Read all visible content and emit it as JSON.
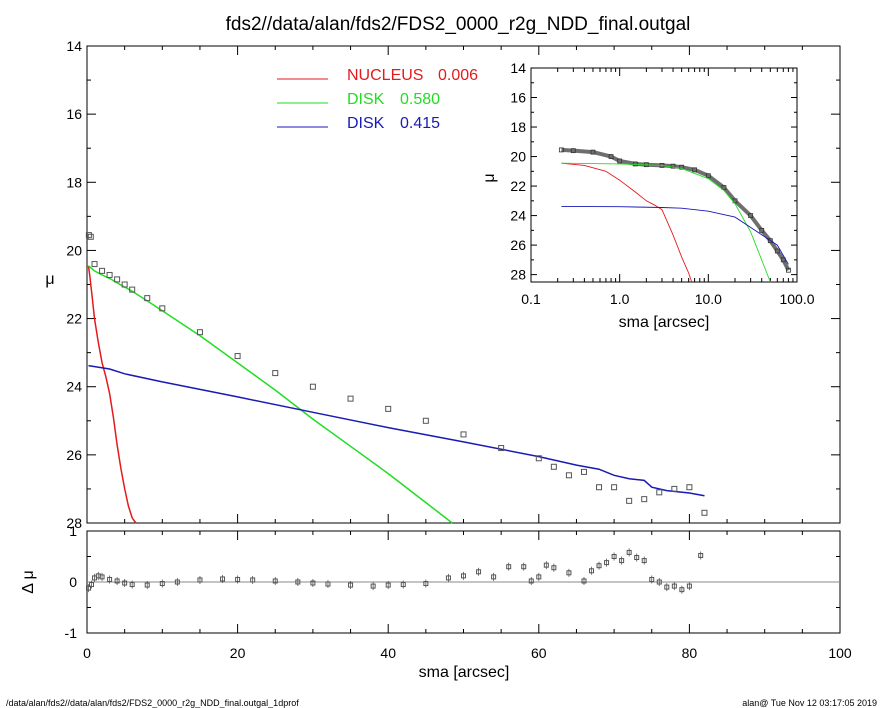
{
  "title": "fds2//data/alan/fds2/FDS2_0000_r2g_NDD_final.outgal",
  "footer_left": "/data/alan/fds2//data/alan/fds2/FDS2_0000_r2g_NDD_final.outgal_1dprof",
  "footer_right": "alan@  Tue Nov 12 03:17:05 2019",
  "colors": {
    "nucleus": "#e41a1c",
    "disk1": "#22dd22",
    "disk2": "#1a1ab4",
    "data": "#555555",
    "zero_line": "#888888"
  },
  "chart_data": [
    {
      "type": "line",
      "name": "main-profile",
      "xlabel": "sma [arcsec]",
      "ylabel": "μ",
      "xlim": [
        0,
        100
      ],
      "ylim": [
        28,
        14
      ],
      "x_ticks": [
        "0",
        "20",
        "40",
        "60",
        "80",
        "100"
      ],
      "y_ticks": [
        "14",
        "16",
        "18",
        "20",
        "22",
        "24",
        "26",
        "28"
      ],
      "legend": {
        "placement": "top-center",
        "entries": [
          {
            "label": "NUCLEUS",
            "value": "0.006",
            "color": "#e41a1c"
          },
          {
            "label": "DISK",
            "value": "0.580",
            "color": "#22dd22"
          },
          {
            "label": "DISK",
            "value": "0.415",
            "color": "#1a1ab4"
          }
        ]
      },
      "series": [
        {
          "key": "nucleus",
          "x": [
            0.2,
            0.4,
            0.7,
            1.0,
            1.5,
            2.0,
            2.5,
            3.0,
            3.5,
            4.0,
            4.5,
            5.0,
            5.5,
            6.0,
            6.5
          ],
          "y": [
            20.45,
            20.8,
            21.4,
            22.0,
            22.7,
            23.3,
            23.7,
            24.2,
            24.9,
            25.7,
            26.4,
            27.0,
            27.5,
            27.85,
            28.0
          ]
        },
        {
          "key": "disk1",
          "x": [
            0.2,
            1,
            2,
            3,
            4,
            6,
            8,
            10,
            15,
            20,
            25,
            30,
            35,
            40,
            45,
            48.5
          ],
          "y": [
            20.45,
            20.6,
            20.72,
            20.82,
            20.95,
            21.2,
            21.48,
            21.77,
            22.5,
            23.3,
            24.1,
            24.95,
            25.75,
            26.55,
            27.4,
            28.0
          ]
        },
        {
          "key": "disk2",
          "x": [
            0.2,
            3,
            5,
            10,
            20,
            30,
            40,
            50,
            60,
            65,
            68,
            70,
            72,
            74,
            75,
            77,
            80,
            82
          ],
          "y": [
            23.38,
            23.48,
            23.62,
            23.86,
            24.3,
            24.75,
            25.2,
            25.62,
            26.05,
            26.3,
            26.42,
            26.6,
            26.7,
            26.75,
            26.95,
            27.05,
            27.12,
            27.2
          ]
        },
        {
          "key": "data",
          "x": [
            0.25,
            0.5,
            1,
            2,
            3,
            4,
            5,
            6,
            8,
            10,
            15,
            20,
            25,
            30,
            35,
            40,
            45,
            50,
            55,
            60,
            62,
            64,
            66,
            68,
            70,
            72,
            74,
            76,
            78,
            80,
            82
          ],
          "y": [
            19.55,
            19.6,
            20.4,
            20.6,
            20.72,
            20.85,
            21.0,
            21.15,
            21.4,
            21.7,
            22.4,
            23.1,
            23.6,
            24.0,
            24.35,
            24.65,
            25.0,
            25.4,
            25.8,
            26.1,
            26.35,
            26.6,
            26.5,
            26.95,
            26.95,
            27.35,
            27.3,
            27.1,
            27.0,
            26.95,
            27.7
          ]
        }
      ]
    },
    {
      "type": "scatter",
      "name": "residuals",
      "xlabel": "sma [arcsec]",
      "ylabel": "Δ μ",
      "xlim": [
        0,
        100
      ],
      "ylim": [
        -1.0,
        1.0
      ],
      "x_ticks": [
        "0",
        "20",
        "40",
        "60",
        "80",
        "100"
      ],
      "y_ticks": [
        "1",
        "0",
        "-1"
      ],
      "series": [
        {
          "key": "residual",
          "x": [
            0.2,
            0.6,
            1.0,
            1.5,
            2,
            3,
            4,
            5,
            6,
            8,
            10,
            12,
            15,
            18,
            20,
            22,
            25,
            28,
            30,
            32,
            35,
            38,
            40,
            42,
            45,
            48,
            50,
            52,
            54,
            56,
            58,
            59,
            60,
            61,
            62,
            64,
            66,
            67,
            68,
            69,
            70,
            71,
            72,
            73,
            74,
            75,
            76,
            77,
            78,
            79,
            80,
            81.5
          ],
          "y": [
            -0.12,
            -0.05,
            0.08,
            0.12,
            0.1,
            0.05,
            0.02,
            -0.02,
            -0.05,
            -0.06,
            -0.03,
            0.0,
            0.04,
            0.06,
            0.05,
            0.04,
            0.02,
            0.0,
            -0.02,
            -0.04,
            -0.06,
            -0.08,
            -0.06,
            -0.05,
            -0.03,
            0.08,
            0.12,
            0.2,
            0.1,
            0.3,
            0.3,
            0.02,
            0.1,
            0.33,
            0.28,
            0.18,
            0.02,
            0.22,
            0.32,
            0.38,
            0.5,
            0.42,
            0.58,
            0.48,
            0.42,
            0.05,
            0.0,
            -0.1,
            -0.08,
            -0.15,
            -0.08,
            0.52
          ]
        }
      ]
    },
    {
      "type": "line",
      "name": "inset-log",
      "xlabel": "sma [arcsec]",
      "ylabel": "μ",
      "x_scale": "log",
      "xlim": [
        0.1,
        100
      ],
      "ylim": [
        28.5,
        14
      ],
      "x_ticks": [
        "0.1",
        "1.0",
        "10.0",
        "100.0"
      ],
      "y_ticks": [
        "14",
        "16",
        "18",
        "20",
        "22",
        "24",
        "26",
        "28"
      ],
      "series": [
        {
          "key": "data",
          "x": [
            0.22,
            0.3,
            0.5,
            0.8,
            1.0,
            1.5,
            2,
            3,
            4,
            5,
            7,
            10,
            15,
            20,
            30,
            40,
            50,
            60,
            70,
            80
          ],
          "y": [
            19.55,
            19.6,
            19.7,
            20.0,
            20.3,
            20.5,
            20.55,
            20.6,
            20.65,
            20.72,
            20.9,
            21.3,
            22.1,
            23.0,
            24.0,
            25.0,
            25.7,
            26.4,
            27.0,
            27.7
          ]
        },
        {
          "key": "nucleus",
          "x": [
            0.22,
            0.4,
            0.7,
            1.0,
            1.5,
            2,
            2.5,
            3,
            4,
            5,
            6,
            6.5
          ],
          "y": [
            20.45,
            20.6,
            21.0,
            21.6,
            22.4,
            23.0,
            23.3,
            23.6,
            25.3,
            26.8,
            27.9,
            28.5
          ]
        },
        {
          "key": "disk1",
          "x": [
            0.22,
            1,
            3,
            5,
            10,
            15,
            20,
            30,
            40,
            50
          ],
          "y": [
            20.45,
            20.5,
            20.6,
            20.8,
            21.5,
            22.3,
            23.2,
            25.1,
            27.0,
            28.5
          ]
        },
        {
          "key": "disk2",
          "x": [
            0.22,
            1,
            3,
            5,
            10,
            20,
            40,
            60,
            80
          ],
          "y": [
            23.38,
            23.4,
            23.45,
            23.5,
            23.7,
            24.1,
            25.3,
            26.0,
            27.3
          ]
        }
      ]
    }
  ]
}
